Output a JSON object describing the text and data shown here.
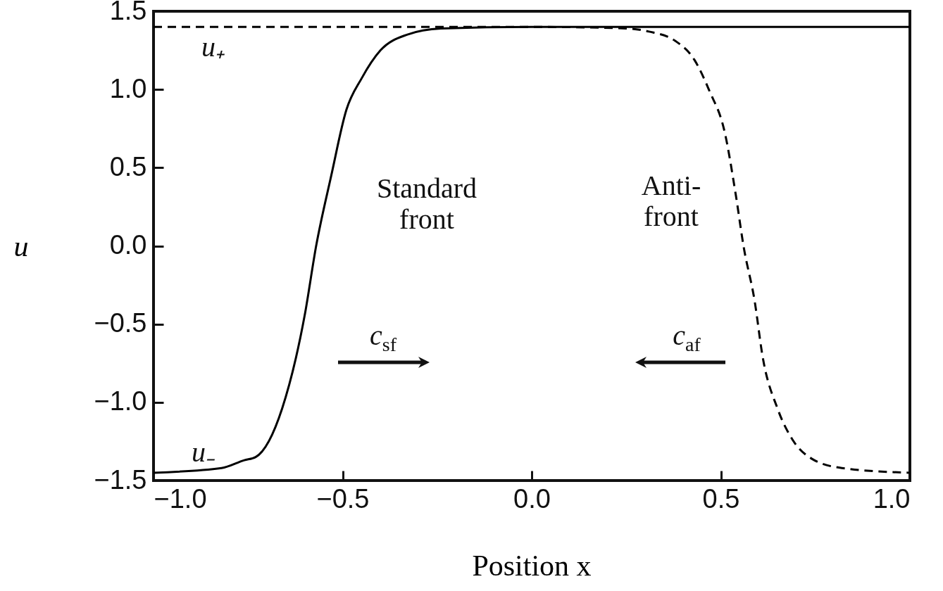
{
  "chart_data": {
    "type": "line",
    "xlabel": "Position x",
    "ylabel": "u",
    "xlim": [
      -1,
      1
    ],
    "xticks": [
      {
        "value": -1,
        "label": "−1.0"
      },
      {
        "value": -0.5,
        "label": "−0.5"
      },
      {
        "value": 0,
        "label": "0.0"
      },
      {
        "value": 0.5,
        "label": "0.5"
      },
      {
        "value": 1,
        "label": "1.0"
      }
    ],
    "ylim": [
      -1.5,
      1.5
    ],
    "yticks": [
      {
        "value": -1.5,
        "label": "−1.5"
      },
      {
        "value": -1,
        "label": "−1.0"
      },
      {
        "value": -0.5,
        "label": "−0.5"
      },
      {
        "value": 0,
        "label": "0.0"
      },
      {
        "value": 0.5,
        "label": "0.5"
      },
      {
        "value": 1,
        "label": "1.0"
      },
      {
        "value": 1.5,
        "label": "1.5"
      }
    ],
    "grid": false,
    "series": [
      {
        "color": "#000000",
        "line_style": "solid",
        "x": [
          -1,
          -0.82,
          -0.76,
          -0.73,
          -0.66,
          -0.6,
          -0.57,
          -0.53,
          -0.49,
          -0.45,
          -0.4,
          -0.33,
          -0.24,
          0,
          1
        ],
        "values": [
          -1.45,
          -1.42,
          -1.37,
          -1.35,
          -1.04,
          -0.44,
          0,
          0.45,
          0.87,
          1.07,
          1.25,
          1.35,
          1.39,
          1.4,
          1.4
        ]
      },
      {
        "color": "#000000",
        "line_style": "dashed",
        "x": [
          -1,
          0,
          0.25,
          0.31,
          0.38,
          0.43,
          0.47,
          0.51,
          0.54,
          0.56,
          0.59,
          0.61,
          0.65,
          0.69,
          0.74,
          0.82,
          1
        ],
        "values": [
          1.4,
          1.4,
          1.39,
          1.37,
          1.31,
          1.19,
          0.99,
          0.73,
          0.32,
          0,
          -0.36,
          -0.7,
          -1.04,
          -1.24,
          -1.36,
          -1.42,
          -1.45
        ]
      }
    ],
    "annotations": [
      "u₊",
      "u₋",
      "Standard\nfront",
      "Anti-\nfront",
      "c$_{sf}$",
      "c$_{af}$"
    ]
  }
}
